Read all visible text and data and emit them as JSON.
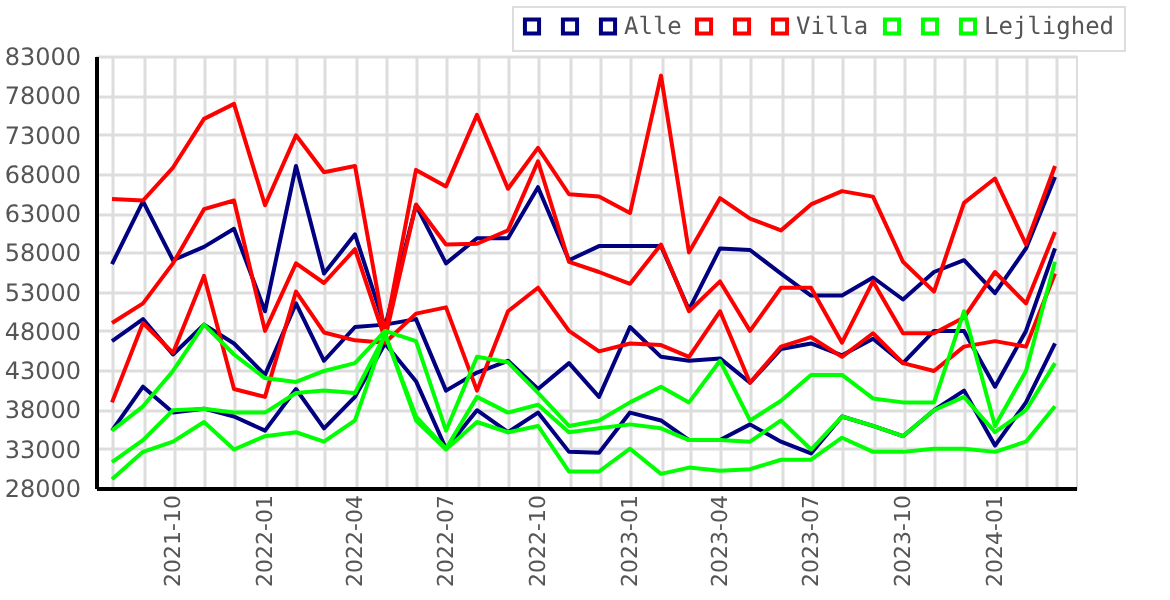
{
  "chart_data": {
    "type": "line",
    "x": [
      "2021-08",
      "2021-09",
      "2021-10",
      "2021-11",
      "2021-12",
      "2022-01",
      "2022-02",
      "2022-03",
      "2022-04",
      "2022-05",
      "2022-06",
      "2022-07",
      "2022-08",
      "2022-09",
      "2022-10",
      "2022-11",
      "2022-12",
      "2023-01",
      "2023-02",
      "2023-03",
      "2023-04",
      "2023-05",
      "2023-06",
      "2023-07",
      "2023-08",
      "2023-09",
      "2023-10",
      "2023-11",
      "2023-12",
      "2024-01",
      "2024-02",
      "2024-03"
    ],
    "xlim": [
      "2021-07-16",
      "2024-03-22"
    ],
    "xticks": [
      {
        "value": "2021-08",
        "label": null
      },
      {
        "value": "2021-09",
        "label": null
      },
      "2021-10",
      {
        "value": "2021-11",
        "label": null
      },
      {
        "value": "2021-12",
        "label": null
      },
      "2022-01",
      {
        "value": "2022-02",
        "label": null
      },
      {
        "value": "2022-03",
        "label": null
      },
      "2022-04",
      {
        "value": "2022-05",
        "label": null
      },
      {
        "value": "2022-06",
        "label": null
      },
      "2022-07",
      {
        "value": "2022-08",
        "label": null
      },
      {
        "value": "2022-09",
        "label": null
      },
      "2022-10",
      {
        "value": "2022-11",
        "label": null
      },
      {
        "value": "2022-12",
        "label": null
      },
      "2023-01",
      {
        "value": "2023-02",
        "label": null
      },
      {
        "value": "2023-03",
        "label": null
      },
      "2023-04",
      {
        "value": "2023-05",
        "label": null
      },
      {
        "value": "2023-06",
        "label": null
      },
      "2023-07",
      {
        "value": "2023-08",
        "label": null
      },
      {
        "value": "2023-09",
        "label": null
      },
      "2023-10",
      {
        "value": "2023-11",
        "label": null
      },
      {
        "value": "2023-12",
        "label": null
      },
      "2024-01",
      {
        "value": "2024-02",
        "label": null
      },
      {
        "value": "2024-03",
        "label": null
      }
    ],
    "ylim": [
      28000,
      83000
    ],
    "yticks": [
      28000,
      33000,
      38000,
      43000,
      48000,
      53000,
      58000,
      63000,
      68000,
      73000,
      78000,
      83000
    ],
    "grid": true,
    "legend": "top right",
    "series": [
      {
        "color": "#000080",
        "values": [
          56500,
          64500,
          57000,
          58700,
          61000,
          50500,
          69000,
          55300,
          60300,
          48500,
          64000,
          56600,
          59800,
          59800,
          66300,
          57000,
          58800,
          58800,
          58800,
          50700,
          58500,
          58300,
          55300,
          52500,
          52500,
          54800,
          52000,
          55500,
          57000,
          52800,
          58500,
          67600
        ]
      },
      {
        "color": "#000080",
        "values": [
          46700,
          49500,
          45000,
          48800,
          46400,
          42400,
          51500,
          44200,
          48500,
          48800,
          49500,
          40400,
          42700,
          44200,
          40600,
          43900,
          39600,
          48500,
          44700,
          44200,
          44500,
          41400,
          45700,
          46400,
          44900,
          47000,
          43900,
          48000,
          48000,
          40900,
          48000,
          58500
        ]
      },
      {
        "name": "Alle",
        "color": "#000080",
        "values": [
          35300,
          40900,
          37600,
          38100,
          37100,
          35300,
          40600,
          35600,
          39600,
          46400,
          41600,
          33000,
          37900,
          35100,
          37600,
          32600,
          32500,
          37600,
          36600,
          34100,
          34100,
          36100,
          33900,
          32400,
          37100,
          35900,
          34600,
          37900,
          40400,
          33400,
          38900,
          46400
        ]
      },
      {
        "color": "#ff0000",
        "values": [
          64800,
          64600,
          68800,
          75000,
          76900,
          64000,
          72900,
          68200,
          69000,
          47700,
          68500,
          66400,
          75500,
          66100,
          71300,
          65400,
          65100,
          63000,
          80500,
          58000,
          64900,
          62300,
          60800,
          64100,
          65800,
          65100,
          56800,
          53000,
          64300,
          67400,
          59000,
          69000
        ]
      },
      {
        "color": "#ff0000",
        "values": [
          49000,
          51500,
          56600,
          63500,
          64600,
          48000,
          56600,
          54100,
          58400,
          47000,
          64100,
          59000,
          59100,
          60800,
          69600,
          56800,
          55500,
          54000,
          59000,
          50500,
          54300,
          48000,
          53500,
          53500,
          46500,
          54300,
          47700,
          47700,
          49700,
          55500,
          51500,
          60600
        ]
      },
      {
        "name": "Villa",
        "color": "#ff0000",
        "values": [
          38900,
          49000,
          45200,
          55000,
          40600,
          39600,
          53000,
          47800,
          46800,
          46500,
          50200,
          51000,
          40400,
          50500,
          53500,
          48000,
          45400,
          46400,
          46200,
          44700,
          50500,
          41400,
          46000,
          47200,
          44700,
          47700,
          43900,
          42900,
          46000,
          46700,
          46000,
          55300
        ]
      },
      {
        "color": "#00ff00",
        "values": [
          35300,
          38400,
          42900,
          48800,
          45000,
          42000,
          41500,
          42900,
          43900,
          48000,
          46700,
          35300,
          44700,
          44000,
          40100,
          35900,
          36600,
          38900,
          40900,
          38900,
          44200,
          36600,
          39100,
          42400,
          42400,
          39400,
          38900,
          38900,
          50500,
          35900,
          42900,
          56800
        ]
      },
      {
        "color": "#00ff00",
        "values": [
          31300,
          34100,
          37900,
          38100,
          37600,
          37600,
          40100,
          40400,
          40100,
          47500,
          37100,
          33000,
          39600,
          37600,
          38600,
          35100,
          35600,
          36100,
          35600,
          34100,
          34100,
          33900,
          36600,
          32900,
          37100,
          35900,
          34600,
          37900,
          39600,
          35100,
          37900,
          43900
        ]
      },
      {
        "name": "Lejlighed",
        "color": "#00ff00",
        "values": [
          29100,
          32600,
          33900,
          36400,
          32900,
          34600,
          35100,
          33900,
          36600,
          47700,
          36600,
          32900,
          36400,
          35100,
          35900,
          30100,
          30100,
          33000,
          29800,
          30600,
          30200,
          30400,
          31600,
          31600,
          34400,
          32600,
          32600,
          33000,
          33000,
          32600,
          33900,
          38400
        ]
      }
    ]
  }
}
